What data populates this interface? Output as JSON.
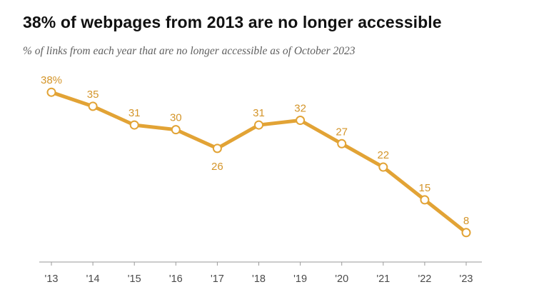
{
  "title": "38% of webpages from 2013 are no longer accessible",
  "subtitle": "% of links from each year that are no longer accessible as of October 2023",
  "colors": {
    "line": "#E2A335",
    "label": "#D4952A",
    "axis": "#9a9a9a",
    "tick_text": "#4a4a4a"
  },
  "chart_data": {
    "type": "line",
    "title": "38% of webpages from 2013 are no longer accessible",
    "subtitle": "% of links from each year that are no longer accessible as of October 2023",
    "categories": [
      "'13",
      "'14",
      "'15",
      "'16",
      "'17",
      "'18",
      "'19",
      "'20",
      "'21",
      "'22",
      "'23"
    ],
    "series": [
      {
        "values": [
          38,
          35,
          31,
          30,
          26,
          31,
          32,
          27,
          22,
          15,
          8
        ]
      }
    ],
    "data_labels": [
      "38%",
      "35",
      "31",
      "30",
      "26",
      "31",
      "32",
      "27",
      "22",
      "15",
      "8"
    ],
    "label_position": [
      "above",
      "above",
      "above",
      "above",
      "below",
      "above",
      "above",
      "above",
      "above",
      "above",
      "above"
    ],
    "ylim": [
      4,
      42
    ],
    "grid": false,
    "legend": "none"
  }
}
